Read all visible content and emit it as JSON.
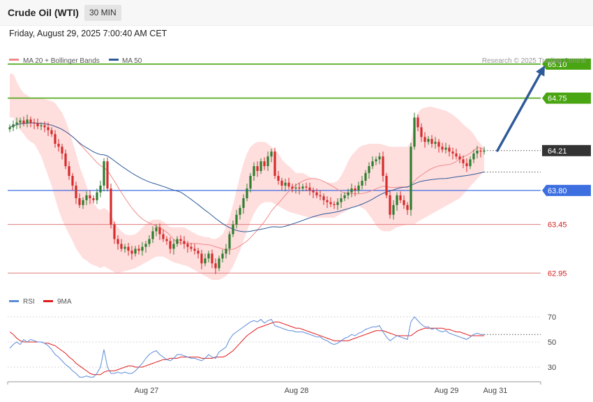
{
  "header": {
    "title": "Crude Oil (WTI)",
    "timeframe": "30 MIN"
  },
  "datetime": "Friday, August 29, 2025 7:00:40 AM CET",
  "credit": "Research © 2025 Trading Central",
  "colors": {
    "resistance": "#4aa512",
    "pivot": "#3d6fe0",
    "support": "#e07b7b",
    "ma20": "#f08a8a",
    "ma50": "#2e5a99",
    "bollinger_fill": "#ffdede",
    "candle_up": "#2f7d2f",
    "candle_down": "#d62b2b",
    "rsi": "#5b8bd9",
    "rsi_ma": "#e01b1b",
    "arrow": "#2e5a99"
  },
  "chart_data": [
    {
      "type": "candlestick",
      "legend": [
        {
          "name": "MA 20 + Bollinger Bands",
          "color": "#f08a8a"
        },
        {
          "name": "MA 50",
          "color": "#2e5a99"
        }
      ],
      "ylim": [
        62.6,
        65.3
      ],
      "x_ticks": [
        {
          "label": "Aug 27",
          "index": 39
        },
        {
          "label": "Aug 28",
          "index": 82
        },
        {
          "label": "Aug 29",
          "index": 125
        },
        {
          "label": "Aug 31",
          "index": 139
        }
      ],
      "levels": [
        {
          "label": "65.10",
          "value": 65.1,
          "kind": "resistance"
        },
        {
          "label": "64.75",
          "value": 64.75,
          "kind": "resistance"
        },
        {
          "label": "64.21",
          "value": 64.21,
          "kind": "current"
        },
        {
          "label": "63.80",
          "value": 63.8,
          "kind": "pivot"
        },
        {
          "label": "63.45",
          "value": 63.45,
          "kind": "support"
        },
        {
          "label": "62.95",
          "value": 62.95,
          "kind": "support"
        }
      ],
      "arrow": {
        "from": {
          "index": 139,
          "value": 64.21
        },
        "to": {
          "index": 152,
          "value": 65.1
        }
      },
      "closes": [
        64.45,
        64.48,
        64.5,
        64.52,
        64.49,
        64.53,
        64.5,
        64.49,
        64.46,
        64.47,
        64.45,
        64.42,
        64.38,
        64.28,
        64.25,
        64.18,
        64.05,
        63.95,
        63.85,
        63.72,
        63.65,
        63.7,
        63.75,
        63.72,
        63.7,
        63.78,
        63.85,
        64.1,
        63.82,
        63.45,
        63.3,
        63.25,
        63.2,
        63.22,
        63.18,
        63.15,
        63.2,
        63.18,
        63.22,
        63.25,
        63.3,
        63.38,
        63.42,
        63.35,
        63.3,
        63.28,
        63.2,
        63.25,
        63.3,
        63.28,
        63.25,
        63.22,
        63.2,
        63.18,
        63.15,
        63.05,
        63.1,
        63.15,
        63.05,
        63.0,
        63.1,
        63.15,
        63.2,
        63.35,
        63.45,
        63.55,
        63.62,
        63.72,
        63.82,
        63.95,
        64.05,
        64.0,
        64.1,
        64.05,
        64.15,
        64.2,
        63.95,
        63.9,
        63.85,
        63.88,
        63.84,
        63.82,
        63.83,
        63.82,
        63.84,
        63.83,
        63.8,
        63.78,
        63.75,
        63.74,
        63.7,
        63.68,
        63.66,
        63.65,
        63.68,
        63.72,
        63.75,
        63.78,
        63.82,
        63.8,
        63.85,
        63.9,
        63.98,
        64.05,
        64.1,
        64.12,
        64.15,
        63.95,
        63.75,
        63.55,
        63.65,
        63.75,
        63.7,
        63.65,
        63.6,
        64.25,
        64.55,
        64.45,
        64.35,
        64.3,
        64.33,
        64.28,
        64.3,
        64.25,
        64.22,
        64.24,
        64.2,
        64.18,
        64.15,
        64.12,
        64.08,
        64.05,
        64.12,
        64.18,
        64.21,
        64.2,
        64.21
      ],
      "bollinger": {
        "upper": [
          65.0,
          65.0,
          64.92,
          64.85,
          64.8,
          64.78,
          64.75,
          64.75,
          64.75,
          64.75,
          64.74,
          64.73,
          64.72,
          64.7,
          64.65,
          64.6,
          64.52,
          64.42,
          64.3,
          64.18,
          64.05,
          63.95,
          63.85,
          63.75,
          63.68,
          63.62,
          63.6,
          63.62,
          63.6,
          63.55,
          63.48,
          63.42,
          63.38,
          63.35,
          63.34,
          63.34,
          63.35,
          63.38,
          63.42,
          63.45,
          63.48,
          63.5,
          63.5,
          63.5,
          63.48,
          63.45,
          63.42,
          63.42,
          63.42,
          63.42,
          63.42,
          63.4,
          63.38,
          63.36,
          63.34,
          63.33,
          63.32,
          63.32,
          63.3,
          63.3,
          63.32,
          63.35,
          63.42,
          63.52,
          63.65,
          63.8,
          63.95,
          64.08,
          64.18,
          64.25,
          64.28,
          64.3,
          64.3,
          64.3,
          64.28,
          64.25,
          64.22,
          64.18,
          64.12,
          64.08,
          64.05,
          64.02,
          63.98,
          63.98,
          63.98,
          63.96,
          63.94,
          63.92,
          63.92,
          63.9,
          63.9,
          63.88,
          63.88,
          63.88,
          63.9,
          63.95,
          64.02,
          64.1,
          64.16,
          64.2,
          64.24,
          64.26,
          64.27,
          64.28,
          64.28,
          64.28,
          64.28,
          64.27,
          64.26,
          64.25,
          64.25,
          64.25,
          64.25,
          64.25,
          64.25,
          64.3,
          64.5,
          64.6,
          64.64,
          64.65,
          64.66,
          64.66,
          64.65,
          64.64,
          64.63,
          64.62,
          64.6,
          64.58,
          64.55,
          64.52,
          64.48,
          64.45,
          64.42,
          64.38,
          64.32,
          64.28,
          64.22
        ],
        "lower": [
          64.55,
          64.55,
          64.48,
          64.42,
          64.38,
          64.33,
          64.3,
          64.28,
          64.22,
          64.15,
          64.05,
          63.95,
          63.85,
          63.72,
          63.6,
          63.5,
          63.42,
          63.35,
          63.28,
          63.2,
          63.15,
          63.1,
          63.08,
          63.05,
          63.03,
          63.02,
          63.0,
          63.02,
          63.0,
          62.98,
          62.96,
          62.95,
          62.96,
          62.97,
          62.98,
          62.99,
          63.0,
          63.02,
          63.04,
          63.06,
          63.08,
          63.1,
          63.12,
          63.12,
          63.12,
          63.1,
          63.08,
          63.06,
          63.05,
          63.04,
          63.03,
          63.02,
          63.0,
          62.98,
          62.96,
          62.94,
          62.92,
          62.9,
          62.88,
          62.88,
          62.88,
          62.9,
          62.92,
          62.96,
          63.02,
          63.1,
          63.18,
          63.28,
          63.38,
          63.48,
          63.56,
          63.62,
          63.66,
          63.68,
          63.68,
          63.68,
          63.66,
          63.64,
          63.62,
          63.6,
          63.58,
          63.57,
          63.56,
          63.55,
          63.54,
          63.53,
          63.52,
          63.52,
          63.52,
          63.52,
          63.52,
          63.52,
          63.52,
          63.52,
          63.54,
          63.56,
          63.58,
          63.6,
          63.62,
          63.63,
          63.64,
          63.62,
          63.6,
          63.55,
          63.5,
          63.44,
          63.4,
          63.38,
          63.38,
          63.38,
          63.4,
          63.42,
          63.43,
          63.44,
          63.45,
          63.45,
          63.45,
          63.48,
          63.5,
          63.52,
          63.54,
          63.56,
          63.58,
          63.6,
          63.62,
          63.64,
          63.66,
          63.68,
          63.7,
          63.72,
          63.76,
          63.8,
          63.84,
          63.88,
          63.92,
          63.96,
          64.0
        ]
      }
    },
    {
      "type": "line",
      "legend": [
        {
          "name": "RSI",
          "color": "#5b8bd9"
        },
        {
          "name": "9MA",
          "color": "#e01b1b"
        }
      ],
      "ylim": [
        15,
        75
      ],
      "y_ticks": [
        70,
        50,
        30
      ],
      "series": [
        {
          "name": "RSI",
          "values": [
            45,
            48,
            50,
            48,
            52,
            50,
            52,
            51,
            50,
            50,
            49,
            47,
            44,
            40,
            38,
            35,
            32,
            30,
            27,
            25,
            22,
            22,
            23,
            22,
            22,
            25,
            30,
            44,
            30,
            25,
            25,
            26,
            25,
            26,
            25,
            25,
            27,
            30,
            33,
            37,
            40,
            42,
            43,
            40,
            38,
            36,
            35,
            37,
            40,
            40,
            39,
            38,
            37,
            37,
            36,
            35,
            37,
            40,
            38,
            37,
            42,
            44,
            46,
            52,
            56,
            58,
            60,
            62,
            64,
            66,
            67,
            66,
            68,
            65,
            67,
            68,
            63,
            62,
            61,
            60,
            59,
            59,
            58,
            58,
            58,
            57,
            56,
            55,
            54,
            54,
            52,
            51,
            49,
            48,
            49,
            51,
            53,
            54,
            56,
            55,
            57,
            58,
            60,
            61,
            62,
            62,
            63,
            58,
            54,
            51,
            53,
            55,
            54,
            53,
            52,
            66,
            70,
            67,
            64,
            62,
            62,
            60,
            61,
            59,
            58,
            59,
            57,
            56,
            55,
            54,
            53,
            52,
            54,
            56,
            57,
            56,
            56
          ]
        },
        {
          "name": "9MA",
          "values": [
            58,
            56,
            53,
            51,
            50,
            50,
            50,
            50,
            50,
            50,
            49,
            49,
            48,
            47,
            45,
            43,
            41,
            38,
            36,
            33,
            31,
            29,
            27,
            25,
            24,
            24,
            24,
            26,
            27,
            27,
            27,
            28,
            29,
            30,
            31,
            31,
            30,
            30,
            30,
            31,
            32,
            33,
            34,
            35,
            36,
            36,
            37,
            37,
            37,
            38,
            38,
            38,
            38,
            38,
            38,
            37,
            37,
            37,
            37,
            38,
            38,
            38,
            39,
            41,
            43,
            46,
            49,
            52,
            55,
            57,
            59,
            61,
            62,
            63,
            64,
            65,
            66,
            66,
            65,
            64,
            63,
            62,
            61,
            61,
            60,
            59,
            58,
            57,
            56,
            55,
            54,
            53,
            52,
            51,
            51,
            51,
            51,
            51,
            52,
            53,
            54,
            55,
            56,
            57,
            58,
            59,
            59,
            59,
            58,
            57,
            56,
            55,
            55,
            55,
            55,
            55,
            57,
            59,
            60,
            61,
            61,
            61,
            61,
            61,
            61,
            60,
            60,
            59,
            58,
            58,
            57,
            56,
            55,
            55,
            55,
            55,
            55
          ]
        }
      ]
    }
  ]
}
